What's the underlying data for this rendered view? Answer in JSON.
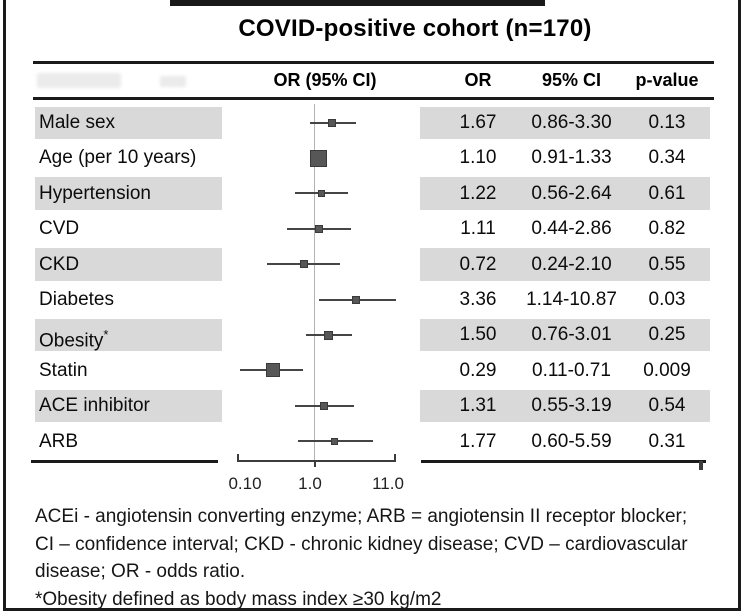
{
  "title": "COVID-positive cohort (n=170)",
  "header": {
    "plot_col": "OR  (95% CI)",
    "or_col": "OR",
    "ci_col": "95% CI",
    "p_col": "p-value"
  },
  "axis": {
    "tick_labels": [
      "0.10",
      "1.0",
      "11.0"
    ],
    "scale": "log",
    "reference_value": "1.0"
  },
  "rows": [
    {
      "label": "Male sex",
      "or": "1.67",
      "ci": "0.86-3.30",
      "p": "0.13",
      "shaded": true,
      "marker_size": 8
    },
    {
      "label": "Age (per 10 years)",
      "or": "1.10",
      "ci": "0.91-1.33",
      "p": "0.34",
      "shaded": false,
      "marker_size": 17
    },
    {
      "label": "Hypertension",
      "or": "1.22",
      "ci": "0.56-2.64",
      "p": "0.61",
      "shaded": true,
      "marker_size": 7
    },
    {
      "label": "CVD",
      "or": "1.11",
      "ci": "0.44-2.86",
      "p": "0.82",
      "shaded": false,
      "marker_size": 8
    },
    {
      "label": "CKD",
      "or": "0.72",
      "ci": "0.24-2.10",
      "p": "0.55",
      "shaded": true,
      "marker_size": 8
    },
    {
      "label": "Diabetes",
      "or": "3.36",
      "ci": "1.14-10.87",
      "p": "0.03",
      "shaded": false,
      "marker_size": 8
    },
    {
      "label": "Obesity*",
      "or": "1.50",
      "ci": "0.76-3.01",
      "p": "0.25",
      "shaded": true,
      "marker_size": 9
    },
    {
      "label": "Statin",
      "or": "0.29",
      "ci": "0.11-0.71",
      "p": "0.009",
      "shaded": false,
      "marker_size": 14
    },
    {
      "label": "ACE inhibitor",
      "or": "1.31",
      "ci": "0.55-3.19",
      "p": "0.54",
      "shaded": true,
      "marker_size": 8
    },
    {
      "label": "ARB",
      "or": "1.77",
      "ci": "0.60-5.59",
      "p": "0.31",
      "shaded": false,
      "marker_size": 7
    }
  ],
  "footnote": {
    "lines": [
      "ACEi - angiotensin converting enzyme; ARB = angiotensin II receptor blocker;",
      "CI – confidence interval; CKD - chronic kidney disease; CVD – cardiovascular",
      "disease; OR - odds ratio.",
      "*Obesity defined as body mass index  ≥30 kg/m2"
    ]
  },
  "colors": {
    "row_shading": "#d9d9d9",
    "marker": "#575757",
    "marker_border": "#3a3a3a",
    "whisker": "#454545",
    "reference_line": "#b3b3b3",
    "frame": "#1a1a1a"
  },
  "chart_data": {
    "type": "scatter",
    "subtype": "forest-plot",
    "title": "COVID-positive cohort (n=170)",
    "x_scale": "log",
    "x_ticks": [
      0.1,
      1.0,
      11.0
    ],
    "x_tick_labels": [
      "0.10",
      "1.0",
      "11.0"
    ],
    "reference_line_x": 1.0,
    "legend": "none",
    "columns": [
      "OR (95% CI)",
      "OR",
      "95% CI",
      "p-value"
    ],
    "categories": [
      "Male sex",
      "Age (per 10 years)",
      "Hypertension",
      "CVD",
      "CKD",
      "Diabetes",
      "Obesity*",
      "Statin",
      "ACE inhibitor",
      "ARB"
    ],
    "odds_ratios": [
      1.67,
      1.1,
      1.22,
      1.11,
      0.72,
      3.36,
      1.5,
      0.29,
      1.31,
      1.77
    ],
    "ci_low": [
      0.86,
      0.91,
      0.56,
      0.44,
      0.24,
      1.14,
      0.76,
      0.11,
      0.55,
      0.6
    ],
    "ci_high": [
      3.3,
      1.33,
      2.64,
      2.86,
      2.1,
      10.87,
      3.01,
      0.71,
      3.19,
      5.59
    ],
    "p_values": [
      "0.13",
      "0.34",
      "0.61",
      "0.82",
      "0.55",
      "0.03",
      "0.25",
      "0.009",
      "0.54",
      "0.31"
    ],
    "footnote": "ACEi - angiotensin converting enzyme; ARB = angiotensin II receptor blocker; CI – confidence interval; CKD - chronic kidney disease; CVD – cardiovascular disease; OR - odds ratio. *Obesity defined as body mass index ≥30 kg/m2"
  }
}
